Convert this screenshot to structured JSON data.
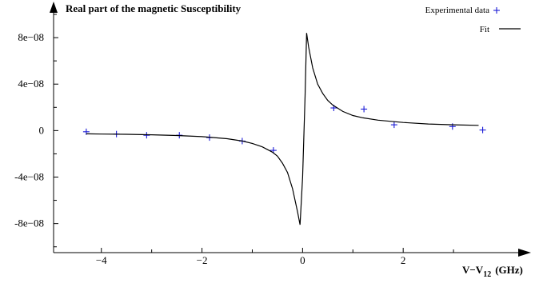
{
  "chart_data": {
    "type": "scatter",
    "title": "Real part of the magnetic Susceptibility",
    "xlabel": "V−V",
    "xlabel_subscript": "12",
    "xlabel_unit": "(GHz)",
    "ylabel": "",
    "xlim": [
      -4.95,
      4.35
    ],
    "ylim": [
      -1.05e-07,
      1e-07
    ],
    "x_ticks": [
      {
        "value": -4,
        "label": "−4"
      },
      {
        "value": -2,
        "label": "−2"
      },
      {
        "value": 0,
        "label": "0"
      },
      {
        "value": 2,
        "label": "2"
      }
    ],
    "x_minor_ticks": [
      -3,
      -1,
      1,
      3
    ],
    "y_ticks": [
      {
        "value": 8e-08,
        "label": "8e−08"
      },
      {
        "value": 4e-08,
        "label": "4e−08"
      },
      {
        "value": 0,
        "label": "0"
      },
      {
        "value": -4e-08,
        "label": "-4e−08"
      },
      {
        "value": -8e-08,
        "label": "-8e−08"
      }
    ],
    "y_minor_ticks": [
      1e-07,
      6e-08,
      2e-08,
      -2e-08,
      -6e-08,
      -1e-07
    ],
    "grid": false,
    "legend_position": "top-right",
    "series": [
      {
        "name": "Experimental data",
        "style": "markers",
        "marker": "+",
        "color": "#1a1ad6",
        "x": [
          -4.3,
          -3.7,
          -3.1,
          -2.45,
          -1.85,
          -1.2,
          -0.58,
          0.62,
          1.22,
          1.82,
          2.98,
          3.58
        ],
        "y": [
          -1e-09,
          -3e-09,
          -4e-09,
          -4e-09,
          -6e-09,
          -9e-09,
          -1.7e-08,
          1.95e-08,
          1.85e-08,
          5e-09,
          3.5e-09,
          5e-10
        ]
      },
      {
        "name": "Fit",
        "style": "line",
        "color": "#000000",
        "x": [
          -4.3,
          -4.0,
          -3.5,
          -3.0,
          -2.5,
          -2.0,
          -1.5,
          -1.2,
          -1.0,
          -0.8,
          -0.6,
          -0.5,
          -0.4,
          -0.3,
          -0.2,
          -0.1,
          -0.05,
          0.0,
          0.05,
          0.08,
          0.12,
          0.2,
          0.3,
          0.4,
          0.5,
          0.6,
          0.8,
          1.0,
          1.2,
          1.5,
          2.0,
          2.5,
          3.0,
          3.5
        ],
        "y": [
          -2.8e-09,
          -3e-09,
          -3.2e-09,
          -3.6e-09,
          -4.2e-09,
          -5.2e-09,
          -7e-09,
          -9e-09,
          -1.1e-08,
          -1.4e-08,
          -1.85e-08,
          -2.2e-08,
          -2.8e-08,
          -3.6e-08,
          -5e-08,
          -7e-08,
          -8.1e-08,
          -4e-08,
          3e-08,
          8.4e-08,
          7.2e-08,
          5.4e-08,
          4e-08,
          3.2e-08,
          2.6e-08,
          2.2e-08,
          1.65e-08,
          1.3e-08,
          1.1e-08,
          9e-09,
          7e-09,
          5.7e-09,
          5e-09,
          4.5e-09
        ]
      }
    ]
  }
}
